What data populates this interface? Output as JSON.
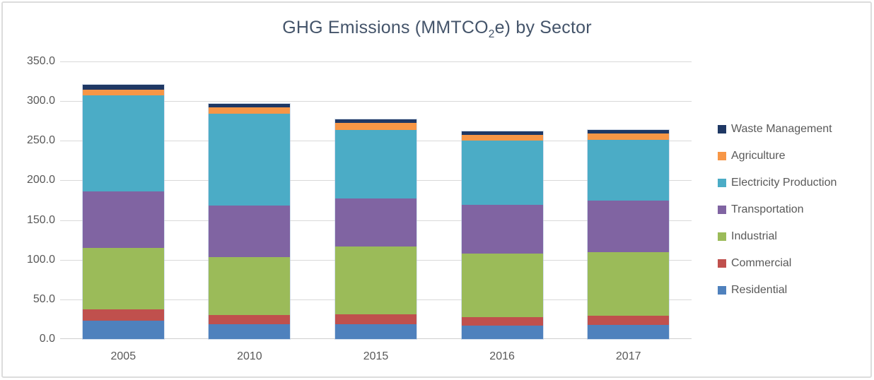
{
  "window": {
    "background_color": "#ffffff",
    "frame_border_color": "#dcdcdc"
  },
  "chart_data": {
    "type": "bar",
    "stacked": true,
    "title": {
      "prefix": "GHG Emissions (MMTCO",
      "subscript": "2",
      "suffix": "e) by Sector",
      "full_text": "GHG Emissions (MMTCO2e) by Sector"
    },
    "categories": [
      "2005",
      "2010",
      "2015",
      "2016",
      "2017"
    ],
    "series": [
      {
        "name": "Residential",
        "color": "#4F81BD",
        "values": [
          23,
          19,
          19,
          17,
          18
        ]
      },
      {
        "name": "Commercial",
        "color": "#C0504D",
        "values": [
          14,
          11,
          12,
          11,
          11
        ]
      },
      {
        "name": "Industrial",
        "color": "#9BBB59",
        "values": [
          78,
          73,
          86,
          80,
          81
        ]
      },
      {
        "name": "Transportation",
        "color": "#8064A2",
        "values": [
          71,
          65,
          60,
          61,
          65
        ]
      },
      {
        "name": "Electricity Production",
        "color": "#4BACC6",
        "values": [
          121,
          116,
          87,
          81,
          76
        ]
      },
      {
        "name": "Agriculture",
        "color": "#F79646",
        "values": [
          7,
          8,
          9,
          7,
          8
        ]
      },
      {
        "name": "Waste Management",
        "color": "#1F3864",
        "values": [
          7,
          5,
          4,
          5,
          5
        ]
      }
    ],
    "totals": [
      321,
      297,
      277,
      262,
      264
    ],
    "xlabel": "",
    "ylabel": "",
    "ylim": [
      0,
      350
    ],
    "ytick_step": 50,
    "ytick_labels": [
      "0.0",
      "50.0",
      "100.0",
      "150.0",
      "200.0",
      "250.0",
      "300.0",
      "350.0"
    ],
    "grid": true,
    "legend_position": "right",
    "legend_order_top_to_bottom": [
      "Waste Management",
      "Agriculture",
      "Electricity Production",
      "Transportation",
      "Industrial",
      "Commercial",
      "Residential"
    ],
    "style_colors": {
      "gridline": "#D9D9D9",
      "axis_text": "#595959",
      "title_text": "#44546A"
    }
  }
}
